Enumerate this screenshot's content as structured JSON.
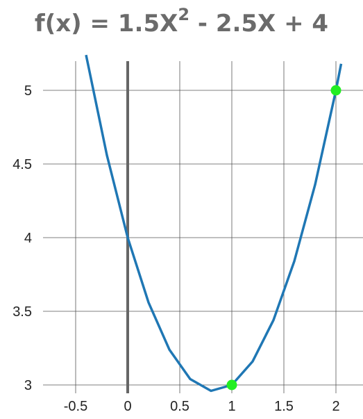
{
  "chart_data": {
    "type": "line",
    "title": {
      "prefix": "f(x) = 1.5X",
      "exponent": "2",
      "suffix": " - 2.5X + 4"
    },
    "xlabel": "",
    "ylabel": "",
    "xlim": [
      -1.0,
      2.25
    ],
    "ylim": [
      2.95,
      5.2
    ],
    "grid": true,
    "x_ticks": [
      -0.5,
      0,
      0.5,
      1,
      1.5,
      2
    ],
    "x_tick_labels": [
      "-0.5",
      "0",
      "0.5",
      "1",
      "1.5",
      "2"
    ],
    "y_ticks": [
      3,
      3.5,
      4,
      4.5,
      5
    ],
    "y_tick_labels": [
      "3",
      "3.5",
      "4",
      "4.5",
      "5"
    ],
    "series": [
      {
        "color": "#1f77b4",
        "x": [
          -0.4,
          -0.2,
          0,
          0.2,
          0.4,
          0.6,
          0.8,
          1.0,
          1.2,
          1.4,
          1.6,
          1.8,
          2.0,
          2.05
        ],
        "y": [
          5.24,
          4.56,
          4.0,
          3.56,
          3.24,
          3.04,
          2.96,
          3.0,
          3.16,
          3.44,
          3.84,
          4.36,
          5.0,
          5.18
        ]
      }
    ],
    "highlight_points": [
      {
        "x": 1,
        "y": 3,
        "color": "#22ee22"
      },
      {
        "x": 2,
        "y": 5,
        "color": "#22ee22"
      }
    ],
    "y_axis_line_color": "#666666"
  }
}
